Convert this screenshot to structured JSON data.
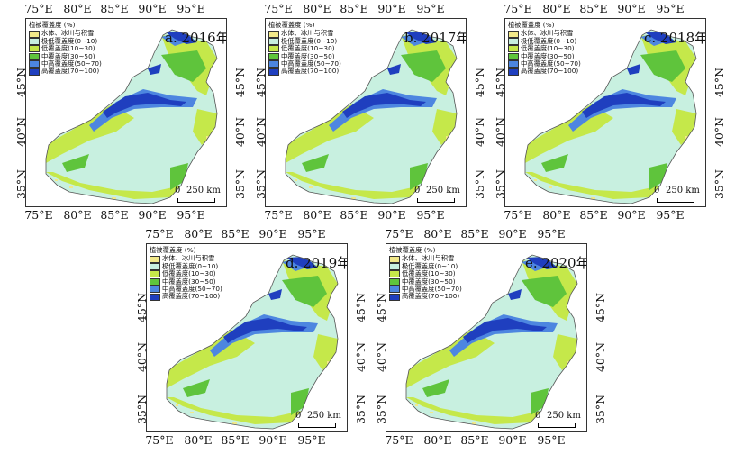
{
  "map": {
    "legend_title": "植被覆盖度 (%)",
    "legend": [
      {
        "label": "水体、冰川与积雪",
        "color": "#f2e98a"
      },
      {
        "label": "极低覆盖度(0~10)",
        "color": "#c8f0e0"
      },
      {
        "label": "低覆盖度(10~30)",
        "color": "#c5e84a"
      },
      {
        "label": "中覆盖度(30~50)",
        "color": "#5fc43c"
      },
      {
        "label": "中高覆盖度(50~70)",
        "color": "#4d86e0"
      },
      {
        "label": "高覆盖度(70~100)",
        "color": "#1f3fbf"
      }
    ],
    "longitude_ticks": [
      "75°E",
      "80°E",
      "85°E",
      "90°E",
      "95°E"
    ],
    "latitude_ticks": [
      "45°N",
      "40°N",
      "35°N"
    ],
    "scale_label": "250 km",
    "scale_zero": "0"
  },
  "panels": [
    {
      "label": "a. 2016年"
    },
    {
      "label": "b. 2017年"
    },
    {
      "label": "c. 2018年"
    },
    {
      "label": "d. 2019年"
    },
    {
      "label": "e. 2020年"
    }
  ]
}
